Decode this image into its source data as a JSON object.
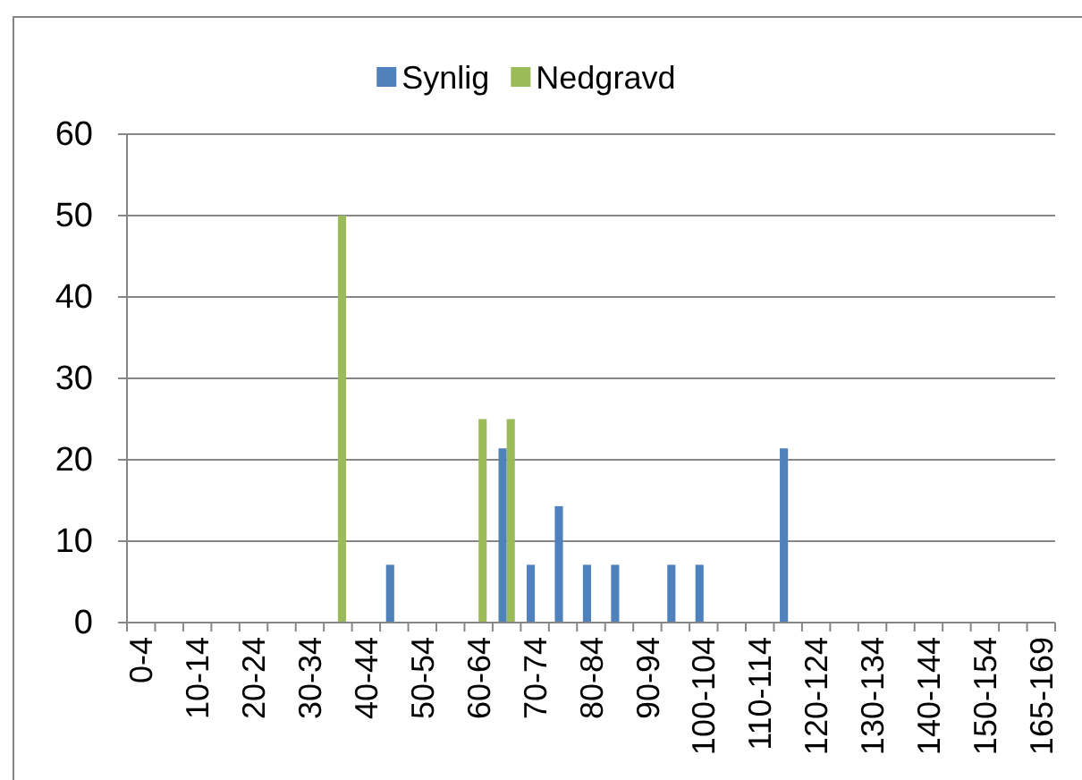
{
  "chart_data": {
    "type": "bar",
    "categories": [
      "0-4",
      null,
      "10-14",
      null,
      "20-24",
      null,
      "30-34",
      null,
      "40-44",
      null,
      "50-54",
      null,
      "60-64",
      null,
      "70-74",
      null,
      "80-84",
      null,
      "90-94",
      null,
      "100-104",
      null,
      "110-114",
      null,
      "120-124",
      null,
      "130-134",
      null,
      "140-144",
      null,
      "150-154",
      null,
      "165-169"
    ],
    "series": [
      {
        "name": "Synlig",
        "color": "#4f81bd",
        "values": [
          0,
          0,
          0,
          0,
          0,
          0,
          0,
          0,
          0,
          7.1,
          0,
          0,
          0,
          21.4,
          7.1,
          14.3,
          7.1,
          7.1,
          0,
          7.1,
          7.1,
          0,
          0,
          21.4,
          0,
          0,
          0,
          0,
          0,
          0,
          0,
          0,
          0
        ]
      },
      {
        "name": "Nedgravd",
        "color": "#9bbb59",
        "values": [
          0,
          0,
          0,
          0,
          0,
          0,
          0,
          50,
          0,
          0,
          0,
          0,
          25,
          25,
          0,
          0,
          0,
          0,
          0,
          0,
          0,
          0,
          0,
          0,
          0,
          0,
          0,
          0,
          0,
          0,
          0,
          0,
          0
        ]
      }
    ],
    "ylim": [
      0,
      60
    ],
    "yticks": [
      0,
      10,
      20,
      30,
      40,
      50,
      60
    ],
    "grid": "y",
    "legend": "top"
  }
}
